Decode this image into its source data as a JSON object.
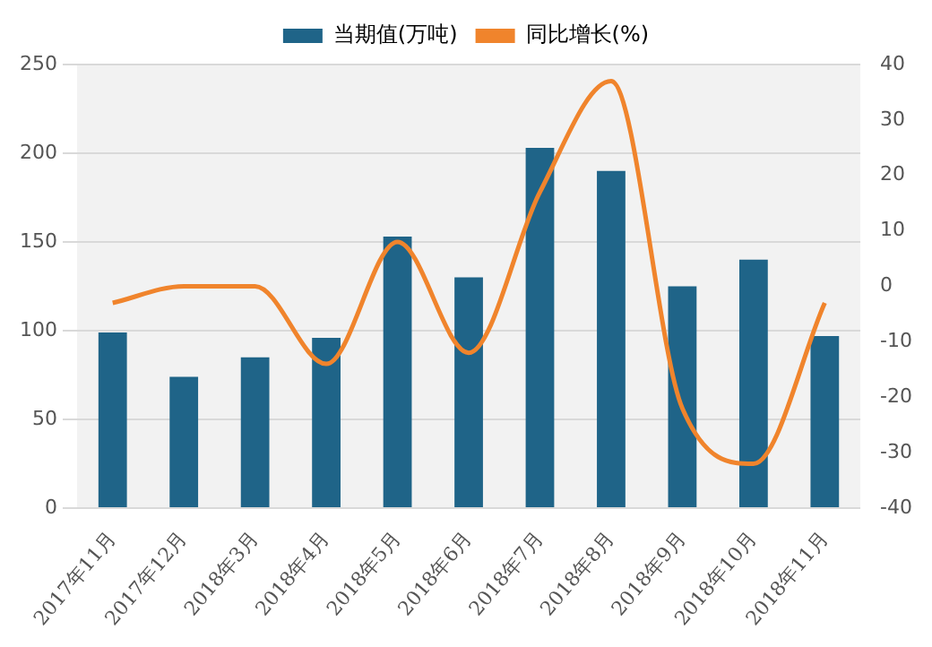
{
  "chart_data": {
    "type": "bar",
    "categories": [
      "2017年11月",
      "2017年12月",
      "2018年3月",
      "2018年4月",
      "2018年5月",
      "2018年6月",
      "2018年7月",
      "2018年8月",
      "2018年9月",
      "2018年10月",
      "2018年11月"
    ],
    "series": [
      {
        "name": "当期值(万吨)",
        "color": "#1f6488",
        "values": [
          99,
          74,
          85,
          96,
          153,
          130,
          203,
          190,
          125,
          140,
          97
        ]
      },
      {
        "name": "同比增长(%)",
        "type": "line",
        "axis": "y2",
        "color": "#f0842c",
        "values": [
          -3,
          0,
          0,
          -14,
          8,
          -12,
          17,
          37,
          -22,
          -32,
          -3
        ]
      }
    ],
    "ylim": [
      0,
      250
    ],
    "yticks": [
      0,
      50,
      100,
      150,
      200,
      250
    ],
    "y2lim": [
      -40,
      40
    ],
    "y2ticks": [
      -40,
      -30,
      -20,
      -10,
      0,
      10,
      20,
      30,
      40
    ],
    "grid": "y",
    "legend": "top",
    "marker": "none"
  }
}
